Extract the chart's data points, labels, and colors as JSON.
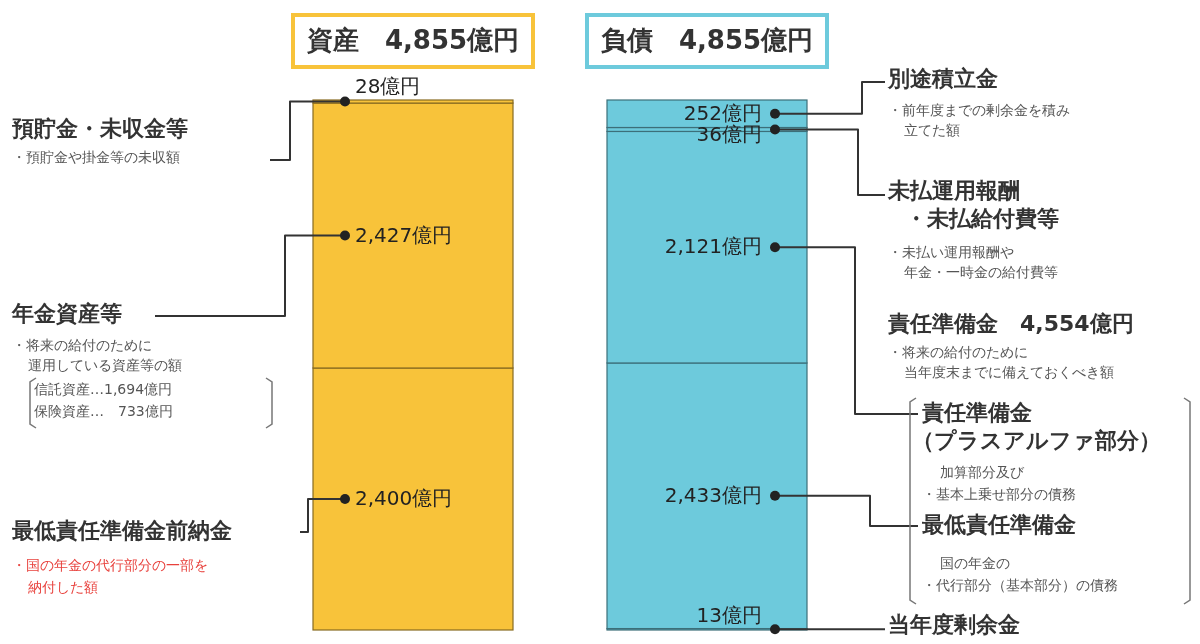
{
  "chart_data": {
    "type": "bar",
    "stacked": true,
    "categories": [
      "資産　4,855億円",
      "負債　4,855億円"
    ],
    "series": [
      {
        "colors": [
          "#f8c33a",
          "#6dcadc"
        ],
        "values": [
          2400,
          13
        ],
        "value_labels": [
          "2,400億円",
          "13億円"
        ]
      },
      {
        "colors": [
          "#f8c33a",
          "#6dcadc"
        ],
        "values": [
          2427,
          2433
        ],
        "value_labels": [
          "2,427億円",
          "2,433億円"
        ]
      },
      {
        "colors": [
          "#f8c33a",
          "#6dcadc"
        ],
        "values": [
          28,
          2121
        ],
        "value_labels": [
          "28億円",
          "2,121億円"
        ]
      },
      {
        "colors": [
          null,
          "#6dcadc"
        ],
        "values": [
          null,
          36
        ],
        "value_labels": [
          null,
          "36億円"
        ]
      },
      {
        "colors": [
          null,
          "#6dcadc"
        ],
        "values": [
          null,
          252
        ],
        "value_labels": [
          null,
          "252億円"
        ]
      }
    ],
    "annotations": [
      "預貯金・未収金等",
      "・預貯金や掛金等の未収額",
      "年金資産等",
      "・将来の給付のために",
      "運用している資産等の額",
      "信託資産…1,694億円",
      "保険資産…　733億円",
      "最低責任準備金前納金",
      "・国の年金の代行部分の一部を",
      "納付した額",
      "別途積立金",
      "・前年度までの剰余金を積み",
      "立てた額",
      "未払運用報酬",
      "・未払給付費等",
      "・未払い運用報酬や",
      "年金・一時金の給付費等",
      "責任準備金　4,554億円",
      "・将来の給付のために",
      "当年度末までに備えておくべき額",
      "責任準備金",
      "（プラスアルファ部分）",
      "加算部分及び",
      "・基本上乗せ部分の債務",
      "最低責任準備金",
      "国の年金の",
      "・代行部分（基本部分）の債務",
      "当年度剰余金"
    ]
  }
}
